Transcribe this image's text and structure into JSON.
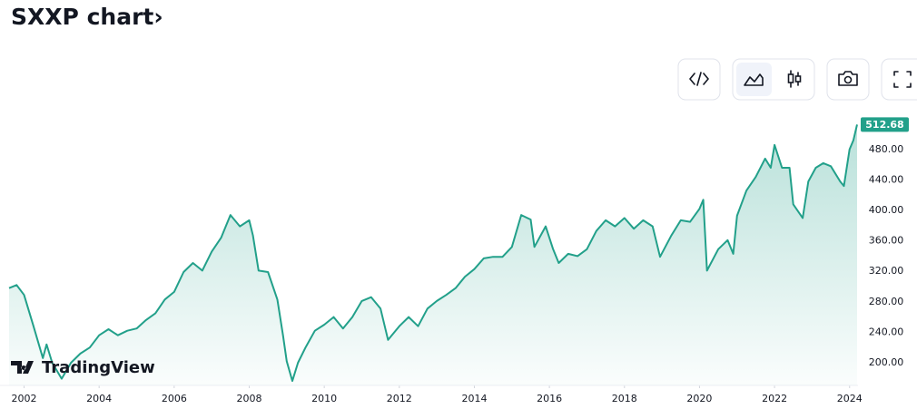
{
  "title": "SXXP chart›",
  "brand": "TradingView",
  "chart_data": {
    "type": "area",
    "color": "#22a08a",
    "x": [
      2001.6,
      2001.8,
      2002.0,
      2002.25,
      2002.5,
      2002.6,
      2002.75,
      2003.0,
      2003.25,
      2003.5,
      2003.75,
      2004.0,
      2004.25,
      2004.5,
      2004.75,
      2005.0,
      2005.25,
      2005.5,
      2005.75,
      2006.0,
      2006.25,
      2006.5,
      2006.75,
      2007.0,
      2007.25,
      2007.5,
      2007.75,
      2008.0,
      2008.1,
      2008.25,
      2008.5,
      2008.75,
      2008.9,
      2009.0,
      2009.15,
      2009.3,
      2009.5,
      2009.75,
      2010.0,
      2010.25,
      2010.5,
      2010.75,
      2011.0,
      2011.25,
      2011.5,
      2011.7,
      2012.0,
      2012.25,
      2012.5,
      2012.75,
      2013.0,
      2013.25,
      2013.5,
      2013.75,
      2014.0,
      2014.25,
      2014.5,
      2014.75,
      2015.0,
      2015.25,
      2015.5,
      2015.6,
      2015.9,
      2016.1,
      2016.25,
      2016.5,
      2016.75,
      2017.0,
      2017.25,
      2017.5,
      2017.75,
      2018.0,
      2018.25,
      2018.5,
      2018.75,
      2018.95,
      2019.25,
      2019.5,
      2019.75,
      2020.0,
      2020.1,
      2020.2,
      2020.5,
      2020.75,
      2020.9,
      2021.0,
      2021.25,
      2021.5,
      2021.75,
      2021.9,
      2022.0,
      2022.2,
      2022.4,
      2022.5,
      2022.75,
      2022.9,
      2023.1,
      2023.3,
      2023.5,
      2023.75,
      2023.85,
      2024.0,
      2024.1,
      2024.2
    ],
    "values": [
      298,
      302,
      289,
      248,
      206,
      224,
      200,
      179,
      200,
      212,
      220,
      236,
      244,
      236,
      242,
      245,
      256,
      265,
      283,
      293,
      319,
      331,
      321,
      346,
      364,
      394,
      379,
      387,
      367,
      321,
      319,
      283,
      236,
      202,
      176,
      200,
      220,
      242,
      250,
      260,
      245,
      260,
      281,
      286,
      271,
      230,
      248,
      260,
      248,
      271,
      281,
      289,
      298,
      313,
      323,
      337,
      339,
      339,
      352,
      394,
      388,
      352,
      379,
      349,
      331,
      343,
      340,
      349,
      373,
      387,
      379,
      390,
      376,
      387,
      379,
      339,
      367,
      387,
      385,
      402,
      414,
      321,
      349,
      361,
      343,
      393,
      426,
      444,
      468,
      456,
      486,
      456,
      456,
      408,
      390,
      438,
      456,
      462,
      458,
      438,
      432,
      480,
      492,
      512.68
    ],
    "xlim": [
      2001.6,
      2024.2
    ],
    "xticks": [
      2002,
      2004,
      2006,
      2008,
      2010,
      2012,
      2014,
      2016,
      2018,
      2020,
      2022,
      2024
    ],
    "ylim": [
      174,
      521
    ],
    "yticks": [
      {
        "value": 200,
        "label": "200.00"
      },
      {
        "value": 240,
        "label": "240.00"
      },
      {
        "value": 280,
        "label": "280.00"
      },
      {
        "value": 320,
        "label": "320.00"
      },
      {
        "value": 360,
        "label": "360.00"
      },
      {
        "value": 400,
        "label": "400.00"
      },
      {
        "value": 440,
        "label": "440.00"
      },
      {
        "value": 480,
        "label": "480.00"
      }
    ],
    "grid": false
  }
}
